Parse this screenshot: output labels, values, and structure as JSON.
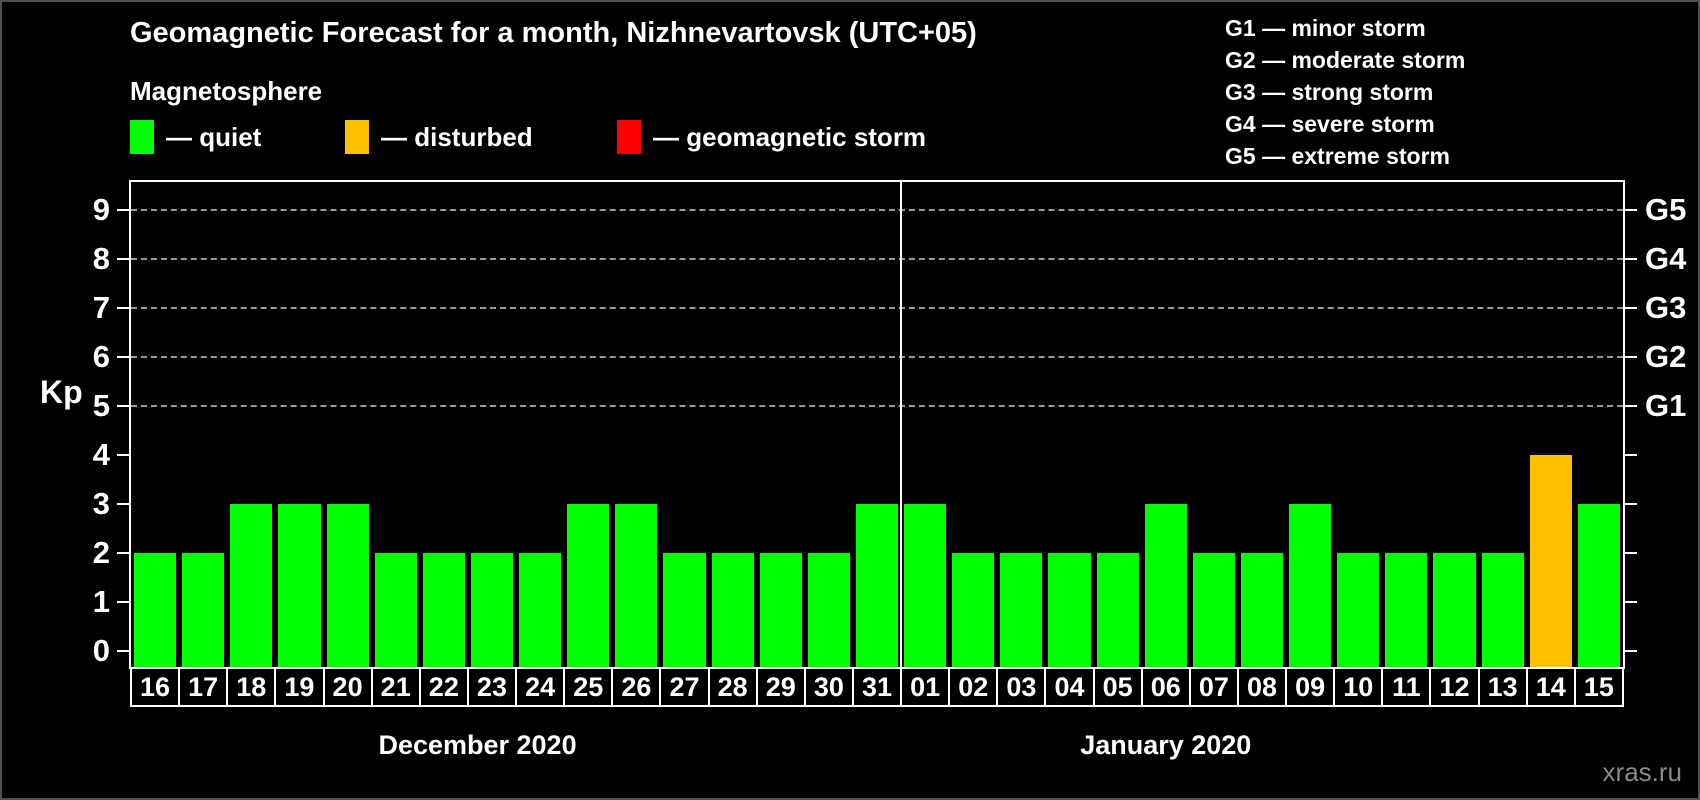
{
  "title": "Geomagnetic Forecast for a month, Nizhnevartovsk (UTC+05)",
  "legend": {
    "heading": "Magnetosphere",
    "items": [
      {
        "name": "quiet",
        "label": "— quiet",
        "color": "#00ff00"
      },
      {
        "name": "disturbed",
        "label": "— disturbed",
        "color": "#ffc000"
      },
      {
        "name": "storm",
        "label": "— geomagnetic storm",
        "color": "#ff0000"
      }
    ]
  },
  "g_scale_legend": [
    "G1 — minor storm",
    "G2 — moderate storm",
    "G3 — strong storm",
    "G4 — severe storm",
    "G5 — extreme storm"
  ],
  "axis": {
    "kp_label": "Kp"
  },
  "watermark": "xras.ru",
  "chart_data": {
    "type": "bar",
    "title": "Geomagnetic Forecast for a month, Nizhnevartovsk (UTC+05)",
    "ylabel": "Kp",
    "ylim": [
      0,
      9
    ],
    "yticks": [
      0,
      1,
      2,
      3,
      4,
      5,
      6,
      7,
      8,
      9
    ],
    "grid_levels_kp": [
      5,
      6,
      7,
      8,
      9
    ],
    "grid_style": "dashed horizontal lines at G-storm levels only",
    "legend_position": "top-left",
    "right_axis_labels": [
      {
        "kp": 5,
        "label": "G1"
      },
      {
        "kp": 6,
        "label": "G2"
      },
      {
        "kp": 7,
        "label": "G3"
      },
      {
        "kp": 8,
        "label": "G4"
      },
      {
        "kp": 9,
        "label": "G5"
      }
    ],
    "state_colors": {
      "quiet": "#00ff00",
      "disturbed": "#ffc000",
      "storm": "#ff0000"
    },
    "months": [
      {
        "label": "December 2020",
        "start_index": 0,
        "count": 16
      },
      {
        "label": "January 2020",
        "start_index": 16,
        "count": 15
      }
    ],
    "bars": [
      {
        "day": "16",
        "month": "December 2020",
        "kp": 2,
        "state": "quiet"
      },
      {
        "day": "17",
        "month": "December 2020",
        "kp": 2,
        "state": "quiet"
      },
      {
        "day": "18",
        "month": "December 2020",
        "kp": 3,
        "state": "quiet"
      },
      {
        "day": "19",
        "month": "December 2020",
        "kp": 3,
        "state": "quiet"
      },
      {
        "day": "20",
        "month": "December 2020",
        "kp": 3,
        "state": "quiet"
      },
      {
        "day": "21",
        "month": "December 2020",
        "kp": 2,
        "state": "quiet"
      },
      {
        "day": "22",
        "month": "December 2020",
        "kp": 2,
        "state": "quiet"
      },
      {
        "day": "23",
        "month": "December 2020",
        "kp": 2,
        "state": "quiet"
      },
      {
        "day": "24",
        "month": "December 2020",
        "kp": 2,
        "state": "quiet"
      },
      {
        "day": "25",
        "month": "December 2020",
        "kp": 3,
        "state": "quiet"
      },
      {
        "day": "26",
        "month": "December 2020",
        "kp": 3,
        "state": "quiet"
      },
      {
        "day": "27",
        "month": "December 2020",
        "kp": 2,
        "state": "quiet"
      },
      {
        "day": "28",
        "month": "December 2020",
        "kp": 2,
        "state": "quiet"
      },
      {
        "day": "29",
        "month": "December 2020",
        "kp": 2,
        "state": "quiet"
      },
      {
        "day": "30",
        "month": "December 2020",
        "kp": 2,
        "state": "quiet"
      },
      {
        "day": "31",
        "month": "December 2020",
        "kp": 3,
        "state": "quiet"
      },
      {
        "day": "01",
        "month": "January 2020",
        "kp": 3,
        "state": "quiet"
      },
      {
        "day": "02",
        "month": "January 2020",
        "kp": 2,
        "state": "quiet"
      },
      {
        "day": "03",
        "month": "January 2020",
        "kp": 2,
        "state": "quiet"
      },
      {
        "day": "04",
        "month": "January 2020",
        "kp": 2,
        "state": "quiet"
      },
      {
        "day": "05",
        "month": "January 2020",
        "kp": 2,
        "state": "quiet"
      },
      {
        "day": "06",
        "month": "January 2020",
        "kp": 3,
        "state": "quiet"
      },
      {
        "day": "07",
        "month": "January 2020",
        "kp": 2,
        "state": "quiet"
      },
      {
        "day": "08",
        "month": "January 2020",
        "kp": 2,
        "state": "quiet"
      },
      {
        "day": "09",
        "month": "January 2020",
        "kp": 3,
        "state": "quiet"
      },
      {
        "day": "10",
        "month": "January 2020",
        "kp": 2,
        "state": "quiet"
      },
      {
        "day": "11",
        "month": "January 2020",
        "kp": 2,
        "state": "quiet"
      },
      {
        "day": "12",
        "month": "January 2020",
        "kp": 2,
        "state": "quiet"
      },
      {
        "day": "13",
        "month": "January 2020",
        "kp": 2,
        "state": "quiet"
      },
      {
        "day": "14",
        "month": "January 2020",
        "kp": 4,
        "state": "disturbed"
      },
      {
        "day": "15",
        "month": "January 2020",
        "kp": 3,
        "state": "quiet"
      }
    ]
  }
}
